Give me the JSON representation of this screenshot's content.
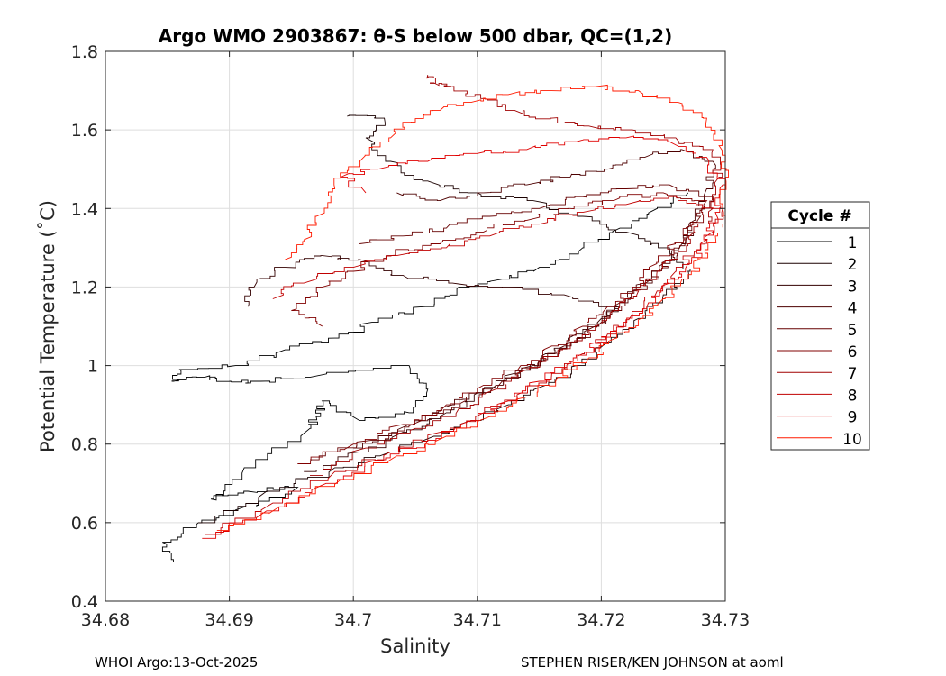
{
  "chart_data": {
    "type": "line",
    "title": "Argo WMO 2903867: θ-S below 500 dbar,  QC=(1,2)",
    "xlabel": "Salinity",
    "ylabel": "Potential Temperature (˚C)",
    "xlim": [
      34.68,
      34.73
    ],
    "ylim": [
      0.4,
      1.8
    ],
    "xticks": [
      34.68,
      34.69,
      34.7,
      34.71,
      34.72,
      34.73
    ],
    "xtick_labels": [
      "34.68",
      "34.69",
      "34.7",
      "34.71",
      "34.72",
      "34.73"
    ],
    "yticks": [
      0.4,
      0.6,
      0.8,
      1.0,
      1.2,
      1.4,
      1.6,
      1.8
    ],
    "ytick_labels": [
      "0.4",
      "0.6",
      "0.8",
      "1",
      "1.2",
      "1.4",
      "1.6",
      "1.8"
    ],
    "grid": true,
    "legend_title": "Cycle #",
    "legend_position": "right-outside",
    "series": [
      {
        "name": "1",
        "color": "#000000",
        "points": [
          [
            34.6855,
            0.5
          ],
          [
            34.6846,
            0.55
          ],
          [
            34.6875,
            0.6
          ],
          [
            34.6912,
            0.64
          ],
          [
            34.6955,
            0.69
          ],
          [
            34.6915,
            0.68
          ],
          [
            34.6885,
            0.66
          ],
          [
            34.6912,
            0.74
          ],
          [
            34.6965,
            0.84
          ],
          [
            34.697,
            0.87
          ],
          [
            34.6975,
            0.91
          ],
          [
            34.7005,
            0.86
          ],
          [
            34.7045,
            0.88
          ],
          [
            34.706,
            0.94
          ],
          [
            34.7045,
            1.0
          ],
          [
            34.6965,
            0.97
          ],
          [
            34.6925,
            0.96
          ],
          [
            34.69,
            0.96
          ],
          [
            34.688,
            0.97
          ],
          [
            34.6855,
            0.96
          ],
          [
            34.686,
            0.99
          ],
          [
            34.6905,
            1.0
          ],
          [
            34.6945,
            1.04
          ],
          [
            34.6985,
            1.07
          ],
          [
            34.7015,
            1.11
          ],
          [
            34.7058,
            1.15
          ],
          [
            34.7085,
            1.2
          ],
          [
            34.712,
            1.22
          ],
          [
            34.715,
            1.25
          ],
          [
            34.7185,
            1.3
          ],
          [
            34.7215,
            1.35
          ],
          [
            34.7245,
            1.4
          ],
          [
            34.727,
            1.44
          ]
        ]
      },
      {
        "name": "2",
        "color": "#1a0000",
        "points": [
          [
            34.6875,
            0.6
          ],
          [
            34.693,
            0.68
          ],
          [
            34.6985,
            0.74
          ],
          [
            34.703,
            0.78
          ],
          [
            34.7065,
            0.82
          ],
          [
            34.7095,
            0.86
          ],
          [
            34.7125,
            0.9
          ],
          [
            34.7155,
            0.95
          ],
          [
            34.718,
            1.0
          ],
          [
            34.7205,
            1.06
          ],
          [
            34.723,
            1.12
          ],
          [
            34.725,
            1.18
          ],
          [
            34.727,
            1.24
          ],
          [
            34.7255,
            1.3
          ],
          [
            34.722,
            1.34
          ],
          [
            34.7185,
            1.38
          ],
          [
            34.7145,
            1.42
          ],
          [
            34.71,
            1.44
          ],
          [
            34.706,
            1.47
          ],
          [
            34.703,
            1.52
          ],
          [
            34.701,
            1.58
          ],
          [
            34.7025,
            1.63
          ],
          [
            34.6995,
            1.635
          ]
        ]
      },
      {
        "name": "3",
        "color": "#330000",
        "points": [
          [
            34.696,
            0.73
          ],
          [
            34.7005,
            0.78
          ],
          [
            34.704,
            0.83
          ],
          [
            34.7075,
            0.88
          ],
          [
            34.71,
            0.93
          ],
          [
            34.713,
            0.98
          ],
          [
            34.7155,
            1.03
          ],
          [
            34.718,
            1.08
          ],
          [
            34.72,
            1.12
          ],
          [
            34.7215,
            1.15
          ],
          [
            34.717,
            1.18
          ],
          [
            34.7125,
            1.2
          ],
          [
            34.708,
            1.21
          ],
          [
            34.704,
            1.23
          ],
          [
            34.7005,
            1.27
          ],
          [
            34.6975,
            1.28
          ],
          [
            34.6945,
            1.25
          ],
          [
            34.692,
            1.2
          ],
          [
            34.6915,
            1.15
          ]
        ]
      },
      {
        "name": "4",
        "color": "#4d0000",
        "points": [
          [
            34.7,
            0.79
          ],
          [
            34.7045,
            0.85
          ],
          [
            34.708,
            0.9
          ],
          [
            34.7115,
            0.95
          ],
          [
            34.7145,
            1.0
          ],
          [
            34.717,
            1.05
          ],
          [
            34.7195,
            1.1
          ],
          [
            34.7215,
            1.16
          ],
          [
            34.7235,
            1.21
          ],
          [
            34.725,
            1.26
          ],
          [
            34.7265,
            1.31
          ],
          [
            34.7275,
            1.37
          ],
          [
            34.7285,
            1.45
          ],
          [
            34.729,
            1.52
          ],
          [
            34.7265,
            1.55
          ],
          [
            34.7235,
            1.53
          ],
          [
            34.7205,
            1.5
          ],
          [
            34.7175,
            1.48
          ],
          [
            34.714,
            1.46
          ],
          [
            34.7105,
            1.44
          ],
          [
            34.707,
            1.42
          ],
          [
            34.7035,
            1.44
          ]
        ]
      },
      {
        "name": "5",
        "color": "#660000",
        "points": [
          [
            34.6965,
            0.76
          ],
          [
            34.7015,
            0.81
          ],
          [
            34.7055,
            0.86
          ],
          [
            34.709,
            0.91
          ],
          [
            34.712,
            0.96
          ],
          [
            34.715,
            1.01
          ],
          [
            34.7175,
            1.06
          ],
          [
            34.72,
            1.11
          ],
          [
            34.722,
            1.17
          ],
          [
            34.724,
            1.22
          ],
          [
            34.7255,
            1.27
          ],
          [
            34.7268,
            1.32
          ],
          [
            34.728,
            1.38
          ],
          [
            34.729,
            1.43
          ],
          [
            34.7255,
            1.46
          ],
          [
            34.722,
            1.45
          ],
          [
            34.7185,
            1.43
          ],
          [
            34.715,
            1.4
          ],
          [
            34.711,
            1.38
          ],
          [
            34.7075,
            1.35
          ],
          [
            34.704,
            1.33
          ],
          [
            34.7005,
            1.31
          ]
        ]
      },
      {
        "name": "6",
        "color": "#800000",
        "points": [
          [
            34.6955,
            0.75
          ],
          [
            34.7,
            0.8
          ],
          [
            34.704,
            0.85
          ],
          [
            34.7075,
            0.9
          ],
          [
            34.7105,
            0.95
          ],
          [
            34.7135,
            1.0
          ],
          [
            34.716,
            1.05
          ],
          [
            34.7185,
            1.1
          ],
          [
            34.7205,
            1.15
          ],
          [
            34.7225,
            1.2
          ],
          [
            34.7245,
            1.26
          ],
          [
            34.726,
            1.31
          ],
          [
            34.7275,
            1.36
          ],
          [
            34.7285,
            1.42
          ],
          [
            34.725,
            1.44
          ],
          [
            34.721,
            1.42
          ],
          [
            34.7175,
            1.4
          ],
          [
            34.714,
            1.37
          ],
          [
            34.7105,
            1.34
          ],
          [
            34.707,
            1.31
          ],
          [
            34.703,
            1.28
          ],
          [
            34.7,
            1.24
          ],
          [
            34.6975,
            1.2
          ],
          [
            34.695,
            1.14
          ],
          [
            34.6975,
            1.1
          ]
        ]
      },
      {
        "name": "7",
        "color": "#a00000",
        "points": [
          [
            34.6965,
            0.72
          ],
          [
            34.701,
            0.79
          ],
          [
            34.705,
            0.84
          ],
          [
            34.7085,
            0.89
          ],
          [
            34.7115,
            0.94
          ],
          [
            34.714,
            0.99
          ],
          [
            34.7165,
            1.04
          ],
          [
            34.719,
            1.09
          ],
          [
            34.721,
            1.14
          ],
          [
            34.723,
            1.19
          ],
          [
            34.7245,
            1.24
          ],
          [
            34.7262,
            1.29
          ],
          [
            34.7275,
            1.34
          ],
          [
            34.729,
            1.4
          ],
          [
            34.7295,
            1.48
          ],
          [
            34.729,
            1.55
          ],
          [
            34.726,
            1.58
          ],
          [
            34.7225,
            1.6
          ],
          [
            34.719,
            1.61
          ],
          [
            34.716,
            1.63
          ],
          [
            34.713,
            1.65
          ],
          [
            34.7105,
            1.68
          ],
          [
            34.708,
            1.71
          ],
          [
            34.7065,
            1.72
          ],
          [
            34.706,
            1.74
          ]
        ]
      },
      {
        "name": "8",
        "color": "#c00000",
        "points": [
          [
            34.688,
            0.57
          ],
          [
            34.6935,
            0.65
          ],
          [
            34.6985,
            0.73
          ],
          [
            34.703,
            0.78
          ],
          [
            34.707,
            0.83
          ],
          [
            34.7105,
            0.88
          ],
          [
            34.7135,
            0.93
          ],
          [
            34.716,
            0.98
          ],
          [
            34.7185,
            1.03
          ],
          [
            34.7205,
            1.08
          ],
          [
            34.7225,
            1.13
          ],
          [
            34.7245,
            1.19
          ],
          [
            34.726,
            1.24
          ],
          [
            34.7275,
            1.29
          ],
          [
            34.729,
            1.34
          ],
          [
            34.7298,
            1.4
          ],
          [
            34.726,
            1.43
          ],
          [
            34.722,
            1.41
          ],
          [
            34.7185,
            1.39
          ],
          [
            34.715,
            1.36
          ],
          [
            34.711,
            1.33
          ],
          [
            34.7075,
            1.3
          ],
          [
            34.7035,
            1.28
          ],
          [
            34.7,
            1.25
          ],
          [
            34.696,
            1.21
          ],
          [
            34.6935,
            1.17
          ]
        ]
      },
      {
        "name": "9",
        "color": "#e00000",
        "points": [
          [
            34.6878,
            0.56
          ],
          [
            34.693,
            0.63
          ],
          [
            34.6978,
            0.7
          ],
          [
            34.702,
            0.76
          ],
          [
            34.706,
            0.81
          ],
          [
            34.7095,
            0.86
          ],
          [
            34.7125,
            0.91
          ],
          [
            34.715,
            0.96
          ],
          [
            34.7175,
            1.01
          ],
          [
            34.7198,
            1.06
          ],
          [
            34.7218,
            1.11
          ],
          [
            34.7238,
            1.16
          ],
          [
            34.7255,
            1.21
          ],
          [
            34.727,
            1.26
          ],
          [
            34.7285,
            1.32
          ],
          [
            34.7292,
            1.39
          ],
          [
            34.7298,
            1.46
          ],
          [
            34.7285,
            1.53
          ],
          [
            34.7255,
            1.57
          ],
          [
            34.722,
            1.58
          ],
          [
            34.718,
            1.57
          ],
          [
            34.714,
            1.55
          ],
          [
            34.71,
            1.54
          ],
          [
            34.706,
            1.52
          ],
          [
            34.702,
            1.5
          ],
          [
            34.699,
            1.48
          ],
          [
            34.701,
            1.44
          ]
        ]
      },
      {
        "name": "10",
        "color": "#ff1a00",
        "points": [
          [
            34.689,
            0.58
          ],
          [
            34.694,
            0.64
          ],
          [
            34.699,
            0.71
          ],
          [
            34.7035,
            0.77
          ],
          [
            34.7075,
            0.82
          ],
          [
            34.711,
            0.87
          ],
          [
            34.714,
            0.92
          ],
          [
            34.7165,
            0.97
          ],
          [
            34.719,
            1.02
          ],
          [
            34.7212,
            1.07
          ],
          [
            34.7232,
            1.12
          ],
          [
            34.725,
            1.17
          ],
          [
            34.7265,
            1.22
          ],
          [
            34.728,
            1.27
          ],
          [
            34.7292,
            1.33
          ],
          [
            34.7298,
            1.4
          ],
          [
            34.73,
            1.48
          ],
          [
            34.7295,
            1.56
          ],
          [
            34.7285,
            1.63
          ],
          [
            34.7262,
            1.67
          ],
          [
            34.723,
            1.7
          ],
          [
            34.7195,
            1.71
          ],
          [
            34.716,
            1.7
          ],
          [
            34.7125,
            1.69
          ],
          [
            34.7095,
            1.67
          ],
          [
            34.707,
            1.65
          ],
          [
            34.705,
            1.62
          ],
          [
            34.703,
            1.58
          ],
          [
            34.7005,
            1.52
          ],
          [
            34.6985,
            1.45
          ],
          [
            34.697,
            1.38
          ],
          [
            34.696,
            1.32
          ],
          [
            34.6945,
            1.27
          ]
        ]
      }
    ],
    "footer_left": "WHOI Argo:13-Oct-2025",
    "footer_right": "STEPHEN RISER/KEN JOHNSON at aoml"
  }
}
